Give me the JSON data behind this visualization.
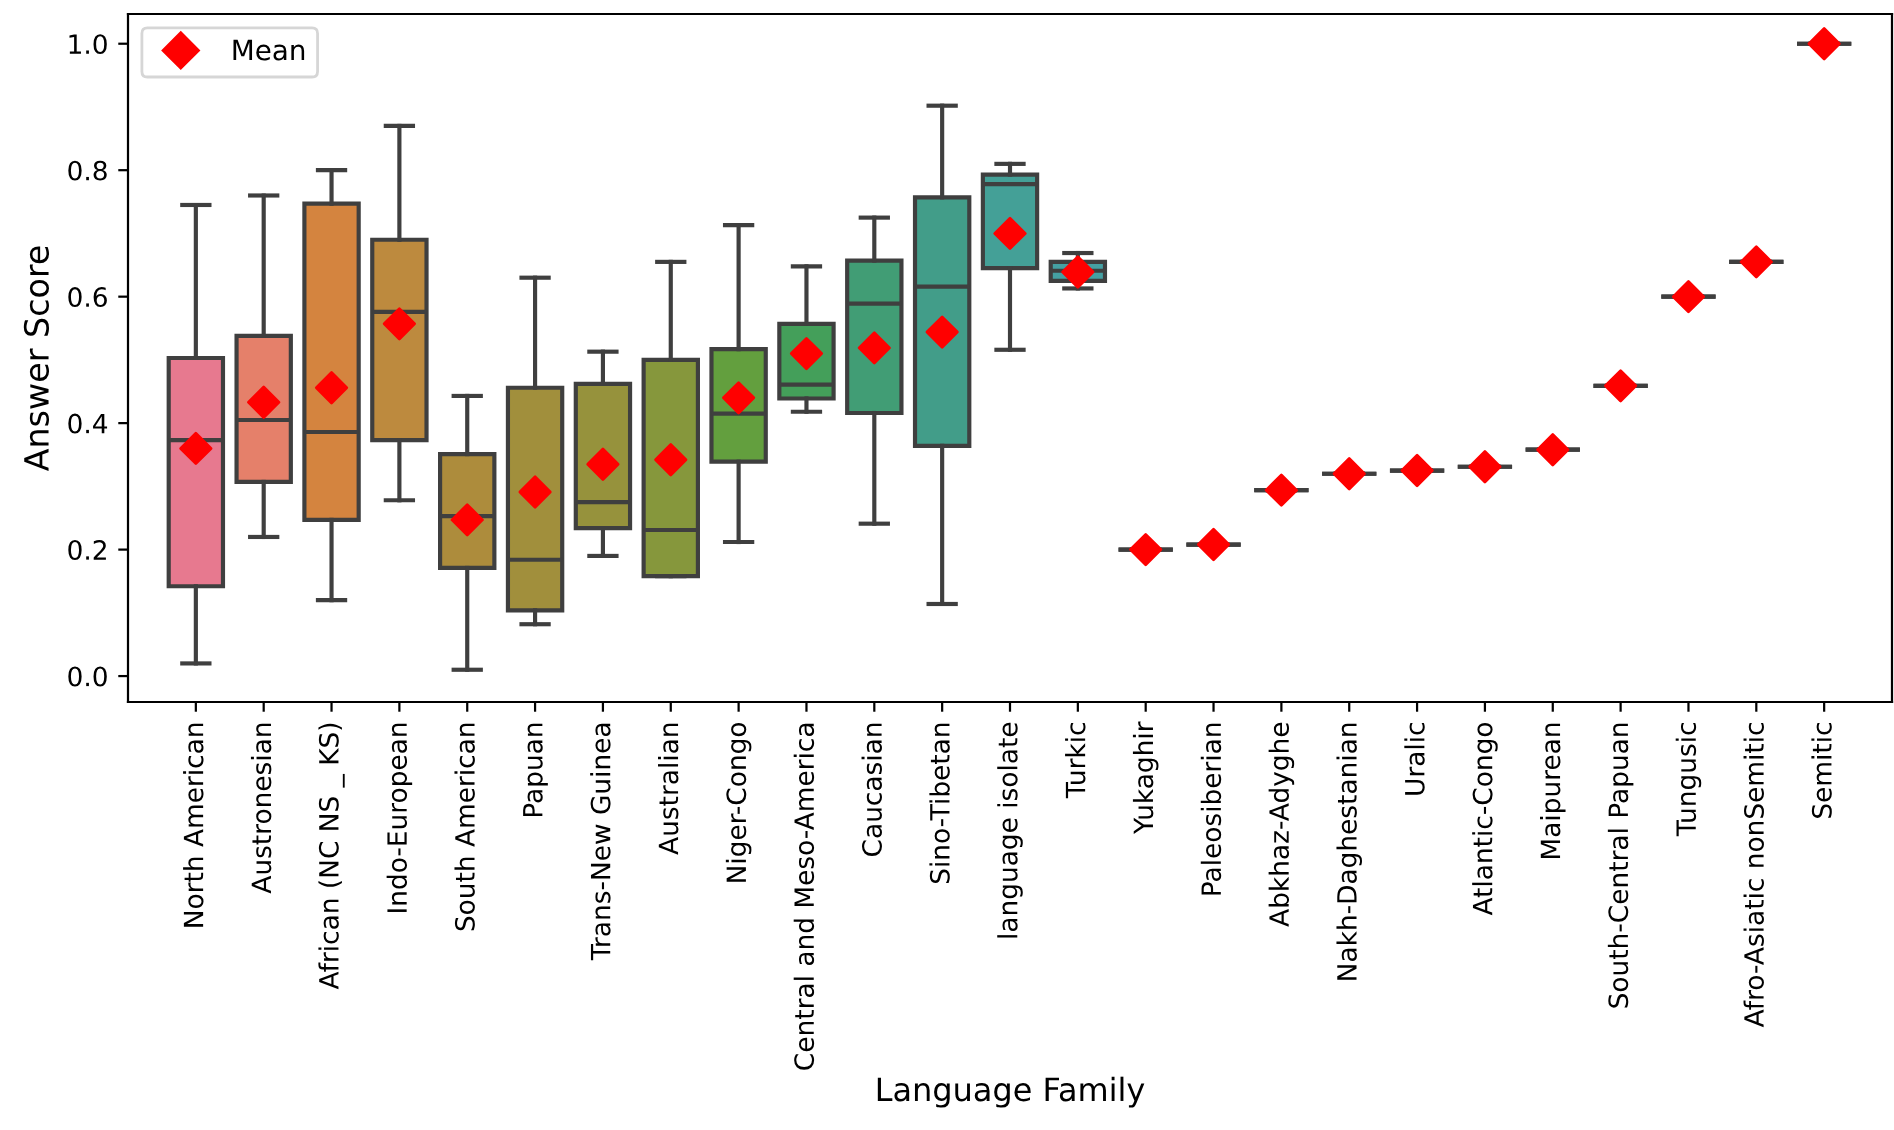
{
  "chart_data": {
    "type": "box",
    "xlabel": "Language Family",
    "ylabel": "Answer Score",
    "categories": [
      "North American",
      "Austronesian",
      "African (NC NS _ KS)",
      "Indo-European",
      "South American",
      "Papuan",
      "Trans-New Guinea",
      "Australian",
      "Niger-Congo",
      "Central and Meso-America",
      "Caucasian",
      "Sino-Tibetan",
      "language isolate",
      "Turkic",
      "Yukaghir",
      "Paleosiberian",
      "Abkhaz-Adyghe",
      "Nakh-Daghestanian",
      "Uralic",
      "Atlantic-Congo",
      "Maipurean",
      "South-Central Papuan",
      "Tungusic",
      "Afro-Asiatic nonSemitic",
      "Semitic"
    ],
    "colors": [
      "#e7798f",
      "#e5806a",
      "#d4843f",
      "#bd8a3e",
      "#ad8c3c",
      "#a18f3c",
      "#96923c",
      "#86973c",
      "#639f3e",
      "#449f5a",
      "#419d75",
      "#429d89",
      "#44a097",
      "#45a0a2",
      null,
      null,
      null,
      null,
      null,
      null,
      null,
      null,
      null,
      null,
      null
    ],
    "boxes": [
      {
        "low": 0.02,
        "q1": 0.142,
        "median": 0.373,
        "q3": 0.503,
        "high": 0.745
      },
      {
        "low": 0.22,
        "q1": 0.307,
        "median": 0.405,
        "q3": 0.538,
        "high": 0.76
      },
      {
        "low": 0.12,
        "q1": 0.247,
        "median": 0.386,
        "q3": 0.747,
        "high": 0.8
      },
      {
        "low": 0.278,
        "q1": 0.373,
        "median": 0.576,
        "q3": 0.69,
        "high": 0.87
      },
      {
        "low": 0.01,
        "q1": 0.171,
        "median": 0.253,
        "q3": 0.351,
        "high": 0.443
      },
      {
        "low": 0.082,
        "q1": 0.104,
        "median": 0.184,
        "q3": 0.456,
        "high": 0.63
      },
      {
        "low": 0.19,
        "q1": 0.234,
        "median": 0.275,
        "q3": 0.462,
        "high": 0.513
      },
      {
        "low": 0.158,
        "q1": 0.158,
        "median": 0.231,
        "q3": 0.5,
        "high": 0.655
      },
      {
        "low": 0.212,
        "q1": 0.339,
        "median": 0.415,
        "q3": 0.517,
        "high": 0.713
      },
      {
        "low": 0.418,
        "q1": 0.439,
        "median": 0.461,
        "q3": 0.557,
        "high": 0.648
      },
      {
        "low": 0.241,
        "q1": 0.416,
        "median": 0.589,
        "q3": 0.657,
        "high": 0.725
      },
      {
        "low": 0.114,
        "q1": 0.364,
        "median": 0.616,
        "q3": 0.757,
        "high": 0.902
      },
      {
        "low": 0.516,
        "q1": 0.645,
        "median": 0.778,
        "q3": 0.793,
        "high": 0.81
      },
      {
        "low": 0.613,
        "q1": 0.625,
        "median": 0.641,
        "q3": 0.655,
        "high": 0.669
      },
      {
        "low": 0.2,
        "q1": 0.2,
        "median": 0.2,
        "q3": 0.2,
        "high": 0.2
      },
      {
        "low": 0.208,
        "q1": 0.208,
        "median": 0.208,
        "q3": 0.208,
        "high": 0.208
      },
      {
        "low": 0.294,
        "q1": 0.294,
        "median": 0.294,
        "q3": 0.294,
        "high": 0.294
      },
      {
        "low": 0.32,
        "q1": 0.32,
        "median": 0.32,
        "q3": 0.32,
        "high": 0.32
      },
      {
        "low": 0.325,
        "q1": 0.325,
        "median": 0.325,
        "q3": 0.325,
        "high": 0.325
      },
      {
        "low": 0.331,
        "q1": 0.331,
        "median": 0.331,
        "q3": 0.331,
        "high": 0.331
      },
      {
        "low": 0.358,
        "q1": 0.358,
        "median": 0.358,
        "q3": 0.358,
        "high": 0.358
      },
      {
        "low": 0.459,
        "q1": 0.459,
        "median": 0.459,
        "q3": 0.459,
        "high": 0.459
      },
      {
        "low": 0.6,
        "q1": 0.6,
        "median": 0.6,
        "q3": 0.6,
        "high": 0.6
      },
      {
        "low": 0.655,
        "q1": 0.655,
        "median": 0.655,
        "q3": 0.655,
        "high": 0.655
      },
      {
        "low": 1.0,
        "q1": 1.0,
        "median": 1.0,
        "q3": 1.0,
        "high": 1.0
      }
    ],
    "series": [
      {
        "name": "Mean",
        "type": "scatter",
        "color": "#ff0000",
        "marker": "diamond",
        "x": [
          "North American",
          "Austronesian",
          "African (NC NS _ KS)",
          "Indo-European",
          "South American",
          "Papuan",
          "Trans-New Guinea",
          "Australian",
          "Niger-Congo",
          "Central and Meso-America",
          "Caucasian",
          "Sino-Tibetan",
          "language isolate",
          "Turkic",
          "Yukaghir",
          "Paleosiberian",
          "Abkhaz-Adyghe",
          "Nakh-Daghestanian",
          "Uralic",
          "Atlantic-Congo",
          "Maipurean",
          "South-Central Papuan",
          "Tungusic",
          "Afro-Asiatic nonSemitic",
          "Semitic"
        ],
        "values": [
          0.36,
          0.433,
          0.456,
          0.557,
          0.247,
          0.291,
          0.335,
          0.342,
          0.44,
          0.51,
          0.519,
          0.544,
          0.7,
          0.639,
          0.2,
          0.208,
          0.294,
          0.32,
          0.325,
          0.331,
          0.358,
          0.459,
          0.6,
          0.655,
          1.0
        ]
      }
    ],
    "ylim": [
      -0.041,
      1.047
    ],
    "yticks": [
      {
        "value": 0.0,
        "label": "0.0"
      },
      {
        "value": 0.2,
        "label": "0.2"
      },
      {
        "value": 0.4,
        "label": "0.4"
      },
      {
        "value": 0.6,
        "label": "0.6"
      },
      {
        "value": 0.8,
        "label": "0.8"
      },
      {
        "value": 1.0,
        "label": "1.0"
      }
    ],
    "legend": "top left",
    "grid": false
  }
}
